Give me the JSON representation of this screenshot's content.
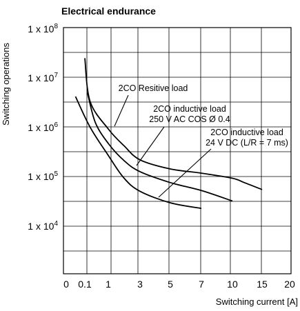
{
  "chart_data": {
    "type": "line",
    "title": "Electrical endurance",
    "xlabel": "Switching current [A]",
    "ylabel": "Switching operations",
    "x_ticks": [
      "0",
      "0.1",
      "1",
      "3",
      "5",
      "7",
      "10",
      "15",
      "20"
    ],
    "y_ticks": [
      {
        "mantissa": "1 x 10",
        "exp": "8"
      },
      {
        "mantissa": "1 x 10",
        "exp": "7"
      },
      {
        "mantissa": "1 x 10",
        "exp": "6"
      },
      {
        "mantissa": "1 x 10",
        "exp": "5"
      },
      {
        "mantissa": "1 x 10",
        "exp": "4"
      }
    ],
    "x_index_of_tick": [
      0,
      1,
      2,
      3,
      4,
      5,
      6,
      7,
      8
    ],
    "y_scale": "log",
    "grid": true,
    "series": [
      {
        "name": "2CO Resitive load",
        "points": [
          [
            0.1,
            30000000
          ],
          [
            0.3,
            4000000
          ],
          [
            1,
            1100000
          ],
          [
            2,
            500000
          ],
          [
            3,
            260000
          ],
          [
            5,
            170000
          ],
          [
            7,
            140000
          ],
          [
            10,
            110000
          ],
          [
            12,
            90000
          ],
          [
            15,
            65000
          ]
        ]
      },
      {
        "name": "2CO inductive load 250 V AC COS Ø 0.4",
        "points": [
          [
            0.2,
            6000000
          ],
          [
            0.5,
            1500000
          ],
          [
            1,
            560000
          ],
          [
            2,
            250000
          ],
          [
            3,
            150000
          ],
          [
            5,
            90000
          ],
          [
            7,
            62000
          ],
          [
            10,
            38000
          ]
        ]
      },
      {
        "name": "2CO inductive load 24 V DC (L/R = 7 ms)",
        "points": [
          [
            0.05,
            5000000
          ],
          [
            0.3,
            1200000
          ],
          [
            1,
            320000
          ],
          [
            2,
            110000
          ],
          [
            3,
            60000
          ],
          [
            5,
            35000
          ],
          [
            7,
            27000
          ]
        ]
      }
    ],
    "annotations": [
      {
        "lines": [
          "2CO Resitive load"
        ]
      },
      {
        "lines": [
          "2CO inductive load",
          "250 V AC COS Ø 0.4"
        ]
      },
      {
        "lines": [
          "2CO inductive load",
          "24 V DC (L/R = 7 ms)"
        ]
      }
    ]
  }
}
